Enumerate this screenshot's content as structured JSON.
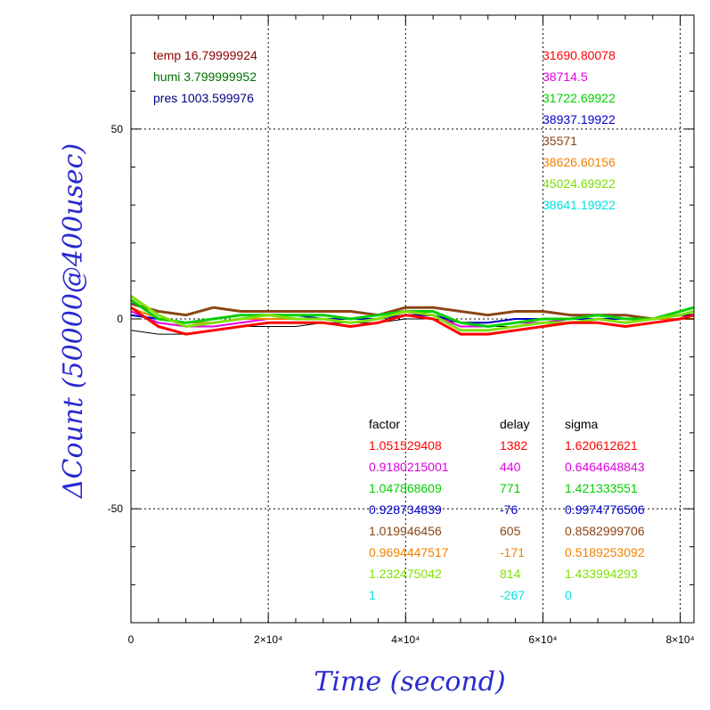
{
  "chart_data": {
    "type": "line",
    "xlabel": "Time (second)",
    "ylabel": "ΔCount (50000@400usec)",
    "xlim": [
      0,
      82000
    ],
    "ylim": [
      -80,
      80
    ],
    "x_ticks": [
      {
        "value": 0,
        "label": "0"
      },
      {
        "value": 20000,
        "label": "2×10⁴"
      },
      {
        "value": 40000,
        "label": "4×10⁴"
      },
      {
        "value": 60000,
        "label": "6×10⁴"
      },
      {
        "value": 80000,
        "label": "8×10⁴"
      }
    ],
    "y_ticks": [
      {
        "value": 50,
        "label": "50"
      },
      {
        "value": 0,
        "label": "0"
      },
      {
        "value": -50,
        "label": "-50"
      }
    ],
    "grid": true,
    "env_readings": [
      {
        "text": "temp 16.79999924",
        "color": "#8b0000"
      },
      {
        "text": "humi 3.799999952",
        "color": "#007000"
      },
      {
        "text": "pres 1003.599976",
        "color": "#000080"
      }
    ],
    "table_headers": {
      "factor": "factor",
      "delay": "delay",
      "sigma": "sigma"
    },
    "series": [
      {
        "color": "#ff0000",
        "mean": "31690.80078",
        "factor": "1.051529408",
        "delay": "1382",
        "sigma": "1.620612621",
        "x": [
          0,
          4000,
          8000,
          12000,
          16000,
          20000,
          24000,
          28000,
          32000,
          36000,
          40000,
          44000,
          48000,
          52000,
          56000,
          60000,
          64000,
          68000,
          72000,
          76000,
          80000,
          82000
        ],
        "y": [
          3,
          -2,
          -4,
          -3,
          -2,
          -1,
          -1,
          -1,
          -2,
          -1,
          1,
          0,
          -4,
          -4,
          -3,
          -2,
          -1,
          -1,
          -2,
          -1,
          0,
          1
        ]
      },
      {
        "color": "#e000e0",
        "mean": "38714.5",
        "factor": "0.9180215001",
        "delay": "440",
        "sigma": "0.6464648843",
        "x": [
          0,
          4000,
          8000,
          12000,
          16000,
          20000,
          24000,
          28000,
          32000,
          36000,
          40000,
          44000,
          48000,
          52000,
          56000,
          60000,
          64000,
          68000,
          72000,
          76000,
          80000,
          82000
        ],
        "y": [
          2,
          -1,
          -2,
          -2,
          -1,
          0,
          0,
          0,
          -1,
          0,
          1,
          1,
          -2,
          -2,
          -1,
          -1,
          0,
          0,
          -1,
          0,
          0,
          0
        ]
      },
      {
        "color": "#00d000",
        "mean": "31722.69922",
        "factor": "1.047868609",
        "delay": "771",
        "sigma": "1.421333551",
        "x": [
          0,
          4000,
          8000,
          12000,
          16000,
          20000,
          24000,
          28000,
          32000,
          36000,
          40000,
          44000,
          48000,
          52000,
          56000,
          60000,
          64000,
          68000,
          72000,
          76000,
          80000,
          82000
        ],
        "y": [
          5,
          0,
          -1,
          0,
          1,
          1,
          1,
          1,
          0,
          1,
          2,
          2,
          -1,
          -2,
          -1,
          0,
          0,
          1,
          0,
          0,
          2,
          3
        ]
      },
      {
        "color": "#0000d0",
        "mean": "38937.19922",
        "factor": "0.928734839",
        "delay": "-76",
        "sigma": "0.9974776506",
        "x": [
          0,
          4000,
          8000,
          12000,
          16000,
          20000,
          24000,
          28000,
          32000,
          36000,
          40000,
          44000,
          48000,
          52000,
          56000,
          60000,
          64000,
          68000,
          72000,
          76000,
          80000,
          82000
        ],
        "y": [
          1,
          0,
          -1,
          0,
          1,
          1,
          1,
          0,
          0,
          0,
          1,
          1,
          -1,
          -1,
          0,
          0,
          0,
          0,
          0,
          0,
          1,
          1
        ]
      },
      {
        "color": "#8b4513",
        "mean": "35571",
        "factor": "1.019946456",
        "delay": "605",
        "sigma": "0.8582999706",
        "x": [
          0,
          4000,
          8000,
          12000,
          16000,
          20000,
          24000,
          28000,
          32000,
          36000,
          40000,
          44000,
          48000,
          52000,
          56000,
          60000,
          64000,
          68000,
          72000,
          76000,
          80000,
          82000
        ],
        "y": [
          4,
          2,
          1,
          3,
          2,
          2,
          2,
          2,
          2,
          1,
          3,
          3,
          2,
          1,
          2,
          2,
          1,
          1,
          1,
          0,
          1,
          1
        ]
      },
      {
        "color": "#f08000",
        "mean": "38626.60156",
        "factor": "0.9694447517",
        "delay": "-171",
        "sigma": "0.5189253092",
        "x": [
          0,
          4000,
          8000,
          12000,
          16000,
          20000,
          24000,
          28000,
          32000,
          36000,
          40000,
          44000,
          48000,
          52000,
          56000,
          60000,
          64000,
          68000,
          72000,
          76000,
          80000,
          82000
        ],
        "y": [
          3,
          0,
          -1,
          -1,
          0,
          0,
          0,
          0,
          -1,
          0,
          1,
          1,
          -1,
          -1,
          0,
          0,
          0,
          0,
          0,
          0,
          0,
          0
        ]
      },
      {
        "color": "#7ee000",
        "mean": "45024.69922",
        "factor": "1.232475042",
        "delay": "814",
        "sigma": "1.433994293",
        "x": [
          0,
          4000,
          8000,
          12000,
          16000,
          20000,
          24000,
          28000,
          32000,
          36000,
          40000,
          44000,
          48000,
          52000,
          56000,
          60000,
          64000,
          68000,
          72000,
          76000,
          80000,
          82000
        ],
        "y": [
          6,
          1,
          -2,
          -1,
          0,
          1,
          0,
          0,
          -1,
          0,
          2,
          1,
          -3,
          -3,
          -2,
          -1,
          -1,
          0,
          -1,
          0,
          1,
          2
        ]
      },
      {
        "color": "#00e0e0",
        "mean": "38641.19922",
        "factor": "1",
        "delay": "-267",
        "sigma": "0",
        "x": [],
        "y": []
      },
      {
        "color": "#000000",
        "mean": "",
        "factor": "",
        "delay": "",
        "sigma": "",
        "x": [
          0,
          4000,
          8000,
          12000,
          16000,
          20000,
          24000,
          28000,
          32000,
          36000,
          40000,
          44000,
          48000,
          52000,
          56000,
          60000,
          64000,
          68000,
          72000,
          76000,
          80000,
          82000
        ],
        "y": [
          -3,
          -4,
          -4,
          -3,
          -2,
          -2,
          -2,
          -1,
          -1,
          -1,
          0,
          0,
          -1,
          -2,
          -2,
          -1,
          -1,
          0,
          0,
          0,
          1,
          1
        ]
      }
    ]
  }
}
